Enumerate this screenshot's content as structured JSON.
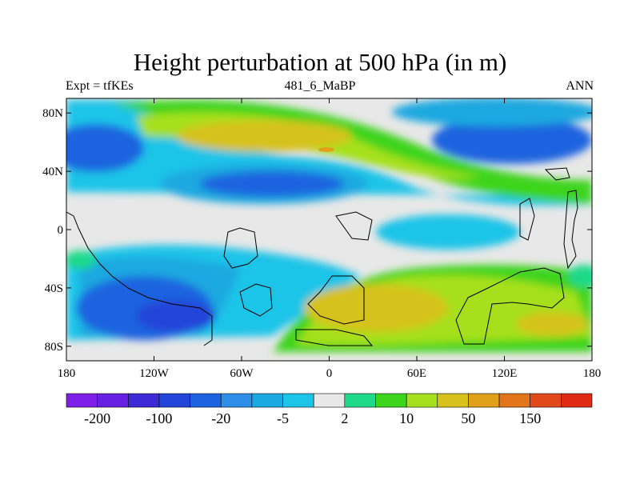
{
  "title": "Height perturbation at 500 hPa (in m)",
  "left_label": "Expt = tfKEs",
  "center_label": "481_6_MaBP",
  "right_label": "ANN",
  "x_ticks": [
    {
      "lon": -180,
      "label": "180"
    },
    {
      "lon": -120,
      "label": "120W"
    },
    {
      "lon": -60,
      "label": "60W"
    },
    {
      "lon": 0,
      "label": "0"
    },
    {
      "lon": 60,
      "label": "60E"
    },
    {
      "lon": 120,
      "label": "120E"
    },
    {
      "lon": 180,
      "label": "180"
    }
  ],
  "y_ticks": [
    {
      "lat": 80,
      "label": "80N"
    },
    {
      "lat": 40,
      "label": "40N"
    },
    {
      "lat": 0,
      "label": "0"
    },
    {
      "lat": -40,
      "label": "40S"
    },
    {
      "lat": -80,
      "label": "80S"
    }
  ],
  "colorbar": {
    "colors": [
      "#7d1fe6",
      "#6620e0",
      "#3d2ad6",
      "#2244d9",
      "#1c64df",
      "#2d8fe8",
      "#1aa8e0",
      "#1cc4e8",
      "#e8e8e8",
      "#1fd98a",
      "#3dd41c",
      "#a6e01c",
      "#d6c21a",
      "#e0a01a",
      "#e2761a",
      "#e04a1a",
      "#e02a18"
    ],
    "labels": [
      {
        "boundary": 1,
        "text": "-200"
      },
      {
        "boundary": 3,
        "text": "-100"
      },
      {
        "boundary": 5,
        "text": "-20"
      },
      {
        "boundary": 7,
        "text": "-5"
      },
      {
        "boundary": 9,
        "text": "2"
      },
      {
        "boundary": 11,
        "text": "10"
      },
      {
        "boundary": 13,
        "text": "50"
      },
      {
        "boundary": 15,
        "text": "150"
      }
    ]
  },
  "map": {
    "lon_range": [
      -180,
      180
    ],
    "lat_range": [
      -90,
      90
    ],
    "background_color": "#e8e8e8",
    "coastline_color": "#000000"
  }
}
